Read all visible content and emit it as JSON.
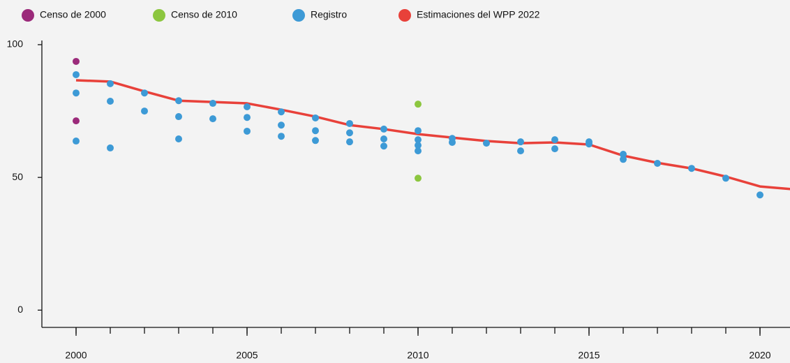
{
  "chart_data": {
    "type": "scatter",
    "xlim": [
      1999,
      2021
    ],
    "xticks": [
      2000,
      2005,
      2010,
      2015,
      2020
    ],
    "minor_xticks": [
      2000,
      2001,
      2002,
      2003,
      2004,
      2005,
      2006,
      2007,
      2008,
      2009,
      2010,
      2011,
      2012,
      2013,
      2014,
      2015,
      2016,
      2017,
      2018,
      2019,
      2020
    ],
    "ylim": [
      -6.5,
      100
    ],
    "yticks": [
      0,
      50,
      100
    ],
    "legend": "top",
    "series": [
      {
        "name": "Censo de 2000",
        "type": "scatter",
        "color": "#9b2a7a",
        "x": [
          2000,
          2000
        ],
        "values": [
          93.7,
          71.3
        ]
      },
      {
        "name": "Censo de 2010",
        "type": "scatter",
        "color": "#8cc63f",
        "x": [
          2010,
          2010
        ],
        "values": [
          77.6,
          49.7
        ]
      },
      {
        "name": "Registro",
        "type": "scatter",
        "color": "#3d9ad6",
        "x": [
          2000,
          2000,
          2000,
          2001,
          2001,
          2001,
          2002,
          2002,
          2003,
          2003,
          2003,
          2004,
          2004,
          2005,
          2005,
          2005,
          2006,
          2006,
          2006,
          2007,
          2007,
          2007,
          2008,
          2008,
          2008,
          2009,
          2009,
          2009,
          2010,
          2010,
          2010,
          2010,
          2011,
          2011,
          2012,
          2013,
          2013,
          2014,
          2014,
          2015,
          2015,
          2016,
          2016,
          2017,
          2018,
          2019,
          2020
        ],
        "values": [
          88.7,
          81.8,
          63.7,
          85.3,
          78.7,
          61.1,
          81.8,
          75.0,
          78.9,
          72.9,
          64.5,
          77.9,
          72.1,
          76.6,
          72.6,
          67.4,
          74.7,
          69.7,
          65.5,
          72.4,
          67.6,
          63.9,
          70.3,
          66.8,
          63.4,
          68.2,
          64.5,
          61.8,
          67.6,
          64.2,
          62.1,
          60.0,
          64.7,
          63.2,
          62.9,
          63.4,
          60.0,
          64.2,
          60.8,
          63.4,
          62.6,
          58.7,
          56.8,
          55.3,
          53.4,
          49.7,
          43.4
        ]
      },
      {
        "name": "Estimaciones del WPP 2022",
        "type": "line",
        "color": "#e8413a",
        "x": [
          2000,
          2001,
          2002,
          2003,
          2004,
          2005,
          2006,
          2007,
          2008,
          2009,
          2010,
          2011,
          2012,
          2013,
          2014,
          2015,
          2016,
          2017,
          2018,
          2019,
          2020,
          2021
        ],
        "values": [
          86.6,
          86.1,
          82.4,
          78.9,
          78.4,
          77.9,
          75.5,
          72.9,
          69.7,
          68.2,
          66.3,
          65.0,
          63.7,
          62.9,
          63.2,
          62.4,
          58.2,
          55.5,
          53.4,
          50.3,
          46.6,
          45.5
        ]
      }
    ]
  }
}
